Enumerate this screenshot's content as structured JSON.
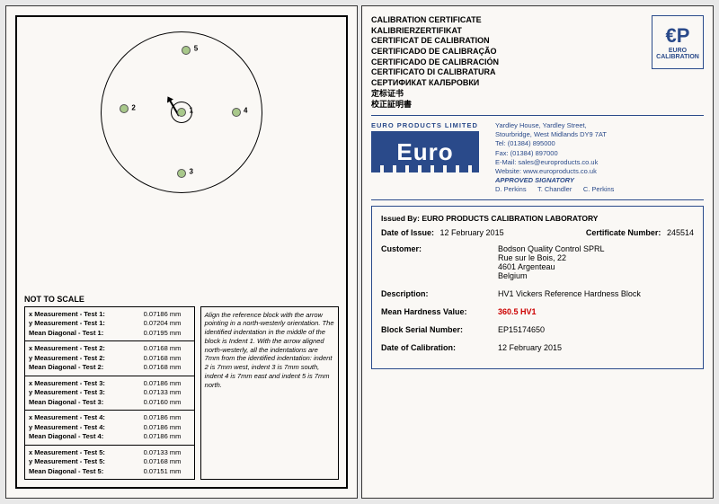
{
  "left": {
    "notToScale": "NOT TO SCALE",
    "points": [
      {
        "num": "1",
        "x": 50,
        "y": 50
      },
      {
        "num": "2",
        "x": 14,
        "y": 48
      },
      {
        "num": "3",
        "x": 50,
        "y": 88
      },
      {
        "num": "4",
        "x": 84,
        "y": 50
      },
      {
        "num": "5",
        "x": 53,
        "y": 11
      }
    ],
    "tests": [
      {
        "rows": [
          {
            "label": "x Measurement - Test 1:",
            "val": "0.07186 mm"
          },
          {
            "label": "y Measurement - Test 1:",
            "val": "0.07204 mm"
          },
          {
            "label": "Mean Diagonal - Test 1:",
            "val": "0.07195 mm"
          }
        ]
      },
      {
        "rows": [
          {
            "label": "x Measurement - Test 2:",
            "val": "0.07168 mm"
          },
          {
            "label": "y Measurement - Test 2:",
            "val": "0.07168 mm"
          },
          {
            "label": "Mean Diagonal - Test 2:",
            "val": "0.07168 mm"
          }
        ]
      },
      {
        "rows": [
          {
            "label": "x Measurement - Test 3:",
            "val": "0.07186 mm"
          },
          {
            "label": "y Measurement - Test 3:",
            "val": "0.07133 mm"
          },
          {
            "label": "Mean Diagonal - Test 3:",
            "val": "0.07160 mm"
          }
        ]
      },
      {
        "rows": [
          {
            "label": "x Measurement - Test 4:",
            "val": "0.07186 mm"
          },
          {
            "label": "y Measurement - Test 4:",
            "val": "0.07186 mm"
          },
          {
            "label": "Mean Diagonal - Test 4:",
            "val": "0.07186 mm"
          }
        ]
      },
      {
        "rows": [
          {
            "label": "x Measurement - Test 5:",
            "val": "0.07133 mm"
          },
          {
            "label": "y Measurement - Test 5:",
            "val": "0.07168 mm"
          },
          {
            "label": "Mean Diagonal - Test 5:",
            "val": "0.07151 mm"
          }
        ]
      }
    ],
    "instructions": "Align the reference block with the arrow pointing in a north-westerly orientation. The identified indentation in the middle of the block is Indent 1. With the arrow aligned north-westerly, all the indentations are 7mm from the identified indentation: indent 2 is 7mm west, indent 3 is 7mm south, indent 4 is 7mm east and indent 5 is 7mm north."
  },
  "right": {
    "titles": [
      "CALIBRATION CERTIFICATE",
      "KALIBRIERZERTIFIKAT",
      "CERTIFICAT DE CALIBRATION",
      "CERTIFICADO DE CALIBRAÇÃO",
      "CERTIFICADO DE CALIBRACIÓN",
      "CERTIFICATO DI CALIBRATURA",
      "СЕРТИФИКАТ КАЛБРОВКИ",
      "定标证书",
      "校正証明書"
    ],
    "logo": {
      "ep": "€P",
      "sub": "EURO",
      "sub2": "CALIBRATION"
    },
    "euroTitle": "EURO PRODUCTS LIMITED",
    "euroLogoText": "Euro",
    "company": {
      "address": "Yardley House, Yardley Street,\nStourbridge, West Midlands DY9 7AT",
      "tel": "Tel:    (01384) 895000",
      "fax": "Fax:   (01384) 897000",
      "email": "E-Mail: sales@europroducts.co.uk",
      "web": "Website: www.europroducts.co.uk",
      "sigTitle": "APPROVED SIGNATORY",
      "sigs": "D. Perkins      T. Chandler      C. Perkins"
    },
    "issuedBy": "Issued By: EURO PRODUCTS CALIBRATION LABORATORY",
    "dateIssueLabel": "Date of Issue:",
    "dateIssue": "12 February 2015",
    "certNumLabel": "Certificate Number:",
    "certNum": "245514",
    "customerLabel": "Customer:",
    "customer": "Bodson Quality Control SPRL\nRue sur le Bois, 22\n4601 Argenteau\nBelgium",
    "descLabel": "Description:",
    "desc": "HV1  Vickers Reference Hardness Block",
    "meanLabel": "Mean Hardness Value:",
    "meanValue": "360.5 HV1",
    "serialLabel": "Block Serial Number:",
    "serial": "EP15174650",
    "calDateLabel": "Date of Calibration:",
    "calDate": "12 February 2015"
  }
}
